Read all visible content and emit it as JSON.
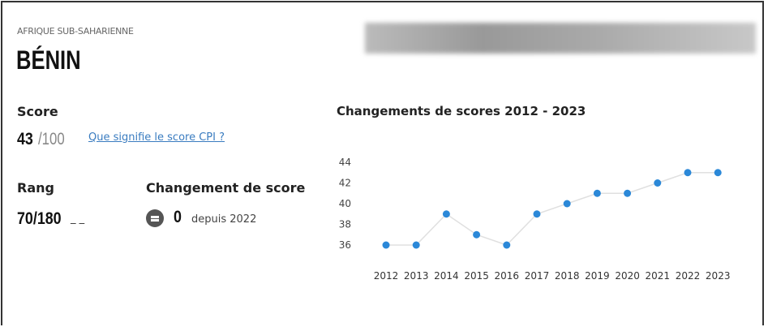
{
  "header": {
    "region": "AFRIQUE SUB-SAHARIENNE",
    "country": "BÉNIN"
  },
  "score": {
    "label": "Score",
    "value": "43",
    "max": "/100",
    "link": "Que signifie le score CPI ?"
  },
  "rank": {
    "label": "Rang",
    "value": "70/180",
    "suffix": "_ _"
  },
  "change": {
    "label": "Changement de score",
    "icon": "equal-circle-icon",
    "value": "0",
    "since": "depuis 2022"
  },
  "chart_data": {
    "type": "line",
    "title": "Changements de scores 2012 - 2023",
    "categories": [
      "2012",
      "2013",
      "2014",
      "2015",
      "2016",
      "2017",
      "2018",
      "2019",
      "2020",
      "2021",
      "2022",
      "2023"
    ],
    "values": [
      36,
      36,
      39,
      37,
      36,
      39,
      40,
      41,
      41,
      42,
      43,
      43
    ],
    "yticks": [
      36,
      38,
      40,
      42,
      44
    ],
    "ylim": [
      36,
      44
    ],
    "grid": false,
    "colors": {
      "point": "#2b88d8",
      "line": "#e0e0e0"
    }
  }
}
